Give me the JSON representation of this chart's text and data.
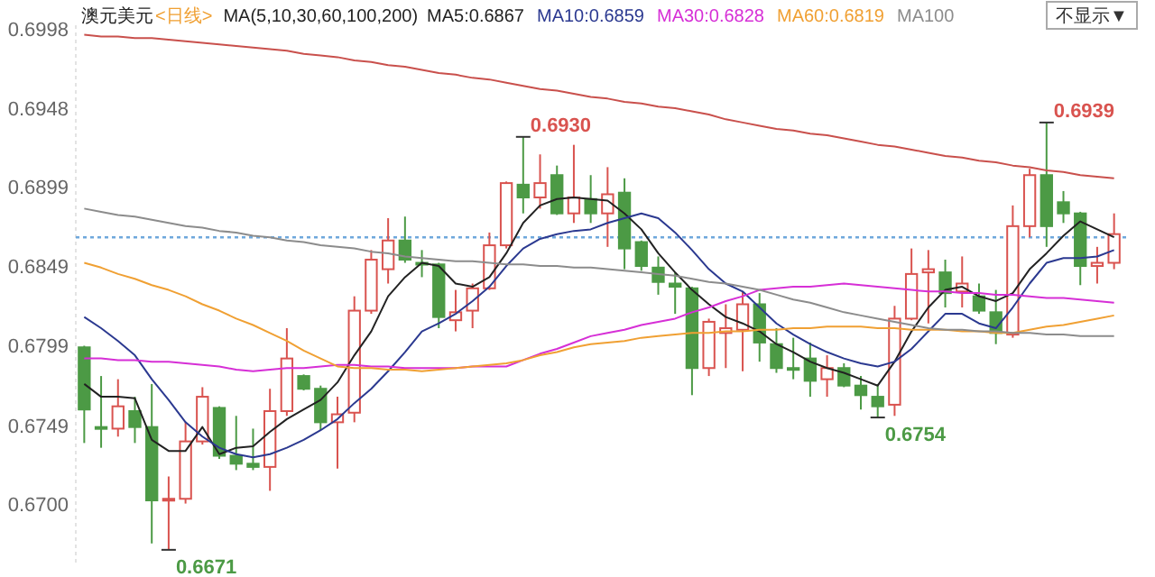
{
  "chart_data": {
    "type": "candlestick",
    "title": "澳元美元",
    "subtitle": "<日线>",
    "categories": [
      null,
      null,
      null,
      null,
      null,
      null,
      null,
      null,
      null,
      null,
      null,
      null,
      null,
      null,
      null,
      null,
      null,
      null,
      null,
      null,
      null,
      null,
      null,
      null,
      null,
      null,
      null,
      null,
      null,
      null,
      null,
      null,
      null,
      null,
      null,
      null,
      null,
      null,
      null,
      null,
      null,
      null,
      null,
      null,
      null,
      null,
      null,
      null,
      null,
      null,
      null,
      null,
      null,
      null,
      null,
      null,
      null,
      null,
      null,
      null,
      null,
      null
    ],
    "ohlc": [
      [
        0.6798,
        0.6799,
        0.6738,
        0.6759
      ],
      [
        0.6748,
        0.678,
        0.6735,
        0.6747
      ],
      [
        0.6747,
        0.6778,
        0.6742,
        0.6761
      ],
      [
        0.6758,
        0.6767,
        0.6738,
        0.6748
      ],
      [
        0.6748,
        0.6775,
        0.6675,
        0.6702
      ],
      [
        0.6702,
        0.6717,
        0.6671,
        0.6703
      ],
      [
        0.6703,
        0.6751,
        0.67,
        0.6739
      ],
      [
        0.6739,
        0.6773,
        0.6737,
        0.6767
      ],
      [
        0.676,
        0.6761,
        0.6728,
        0.673
      ],
      [
        0.673,
        0.6755,
        0.6721,
        0.6725
      ],
      [
        0.6725,
        0.6747,
        0.6721,
        0.6723
      ],
      [
        0.6723,
        0.6772,
        0.6708,
        0.6758
      ],
      [
        0.6758,
        0.681,
        0.6755,
        0.6791
      ],
      [
        0.678,
        0.6781,
        0.6771,
        0.6772
      ],
      [
        0.6772,
        0.6774,
        0.6746,
        0.6751
      ],
      [
        0.6751,
        0.6767,
        0.6722,
        0.6756
      ],
      [
        0.6757,
        0.683,
        0.6751,
        0.6821
      ],
      [
        0.6821,
        0.6859,
        0.6819,
        0.6853
      ],
      [
        0.6847,
        0.6879,
        0.6838,
        0.6865
      ],
      [
        0.6865,
        0.688,
        0.6851,
        0.6853
      ],
      [
        0.6851,
        0.6859,
        0.6842,
        0.685
      ],
      [
        0.685,
        0.6851,
        0.681,
        0.6817
      ],
      [
        0.6815,
        0.6834,
        0.6808,
        0.682
      ],
      [
        0.6821,
        0.6838,
        0.681,
        0.6835
      ],
      [
        0.6835,
        0.687,
        0.6834,
        0.6862
      ],
      [
        0.6862,
        0.6902,
        0.686,
        0.6901
      ],
      [
        0.69,
        0.693,
        0.6882,
        0.6892
      ],
      [
        0.6892,
        0.6919,
        0.6885,
        0.6901
      ],
      [
        0.6906,
        0.6912,
        0.6881,
        0.6882
      ],
      [
        0.6882,
        0.6925,
        0.6876,
        0.6892
      ],
      [
        0.6891,
        0.6906,
        0.6876,
        0.6882
      ],
      [
        0.6882,
        0.6911,
        0.6861,
        0.6894
      ],
      [
        0.6895,
        0.6904,
        0.6847,
        0.686
      ],
      [
        0.6864,
        0.6865,
        0.6846,
        0.6849
      ],
      [
        0.6848,
        0.6855,
        0.6831,
        0.6839
      ],
      [
        0.6838,
        0.6845,
        0.6819,
        0.6836
      ],
      [
        0.6835,
        0.6836,
        0.6768,
        0.6785
      ],
      [
        0.6785,
        0.6816,
        0.678,
        0.6814
      ],
      [
        0.6807,
        0.6825,
        0.6785,
        0.681
      ],
      [
        0.6809,
        0.6833,
        0.6783,
        0.6825
      ],
      [
        0.6825,
        0.6832,
        0.6789,
        0.6801
      ],
      [
        0.68,
        0.681,
        0.6782,
        0.6785
      ],
      [
        0.6785,
        0.6804,
        0.6778,
        0.6784
      ],
      [
        0.6791,
        0.6801,
        0.6767,
        0.6777
      ],
      [
        0.6778,
        0.6793,
        0.6767,
        0.6785
      ],
      [
        0.6785,
        0.6788,
        0.6773,
        0.6774
      ],
      [
        0.6774,
        0.678,
        0.6759,
        0.6768
      ],
      [
        0.6767,
        0.6775,
        0.6754,
        0.6761
      ],
      [
        0.6762,
        0.6824,
        0.6755,
        0.6816
      ],
      [
        0.6816,
        0.686,
        0.6815,
        0.6844
      ],
      [
        0.6845,
        0.6859,
        0.6813,
        0.6847
      ],
      [
        0.6845,
        0.6853,
        0.6823,
        0.6832
      ],
      [
        0.6833,
        0.6855,
        0.6823,
        0.6838
      ],
      [
        0.683,
        0.6838,
        0.6819,
        0.6821
      ],
      [
        0.682,
        0.6834,
        0.68,
        0.6807
      ],
      [
        0.6806,
        0.6887,
        0.6804,
        0.6874
      ],
      [
        0.6874,
        0.691,
        0.6867,
        0.6906
      ],
      [
        0.6906,
        0.6939,
        0.6861,
        0.6874
      ],
      [
        0.6889,
        0.6896,
        0.6876,
        0.6882
      ],
      [
        0.6882,
        0.6883,
        0.6837,
        0.6849
      ],
      [
        0.6849,
        0.6861,
        0.6838,
        0.6851
      ],
      [
        0.6851,
        0.6882,
        0.6847,
        0.6869
      ]
    ],
    "series": [
      {
        "name": "MA5:0.6867",
        "type": "line",
        "color": "#222222",
        "values": [
          0.6775,
          0.6767,
          0.6767,
          0.6766,
          0.674,
          0.6733,
          0.6733,
          0.6748,
          0.6731,
          0.6735,
          0.6736,
          0.6745,
          0.6753,
          0.6759,
          0.6765,
          0.6776,
          0.6793,
          0.6808,
          0.683,
          0.6842,
          0.6851,
          0.6849,
          0.6838,
          0.6836,
          0.6842,
          0.6857,
          0.6876,
          0.6887,
          0.6891,
          0.6892,
          0.6891,
          0.689,
          0.6882,
          0.6872,
          0.6857,
          0.6845,
          0.6834,
          0.6825,
          0.6817,
          0.6813,
          0.6808,
          0.68,
          0.6795,
          0.6789,
          0.6785,
          0.6782,
          0.6778,
          0.6774,
          0.6789,
          0.6808,
          0.6823,
          0.6834,
          0.6836,
          0.683,
          0.6827,
          0.6832,
          0.6847,
          0.6857,
          0.6868,
          0.6877,
          0.6872,
          0.6867
        ]
      },
      {
        "name": "MA10:0.6859",
        "type": "line",
        "color": "#2b3990",
        "values": [
          0.6817,
          0.681,
          0.6802,
          0.6793,
          0.6778,
          0.6765,
          0.6751,
          0.6742,
          0.6735,
          0.6731,
          0.6729,
          0.6731,
          0.6735,
          0.674,
          0.6746,
          0.6753,
          0.6763,
          0.6772,
          0.6783,
          0.6795,
          0.6808,
          0.6813,
          0.6819,
          0.6827,
          0.6836,
          0.6849,
          0.686,
          0.6866,
          0.6869,
          0.6871,
          0.6872,
          0.6876,
          0.6879,
          0.6882,
          0.6879,
          0.687,
          0.6859,
          0.6847,
          0.6838,
          0.6833,
          0.6823,
          0.6813,
          0.6806,
          0.68,
          0.6795,
          0.6791,
          0.6788,
          0.6786,
          0.6789,
          0.6797,
          0.6808,
          0.6819,
          0.6819,
          0.6813,
          0.681,
          0.6823,
          0.6838,
          0.6851,
          0.6854,
          0.6854,
          0.6855,
          0.6859
        ]
      },
      {
        "name": "MA30:0.6828",
        "type": "line",
        "color": "#d62fd6",
        "values": [
          0.6791,
          0.6791,
          0.679,
          0.679,
          0.6789,
          0.6789,
          0.6788,
          0.6787,
          0.6786,
          0.6784,
          0.6783,
          0.6784,
          0.6785,
          0.6785,
          0.6786,
          0.6787,
          0.6787,
          0.6786,
          0.6786,
          0.6785,
          0.6785,
          0.6785,
          0.6785,
          0.6786,
          0.6786,
          0.6786,
          0.679,
          0.6794,
          0.6797,
          0.6801,
          0.6805,
          0.6807,
          0.6809,
          0.6812,
          0.6814,
          0.6816,
          0.682,
          0.6823,
          0.6827,
          0.683,
          0.6834,
          0.6835,
          0.6836,
          0.6836,
          0.6837,
          0.6838,
          0.6837,
          0.6836,
          0.6835,
          0.6834,
          0.6833,
          0.6833,
          0.6832,
          0.6832,
          0.6831,
          0.6831,
          0.683,
          0.6829,
          0.6829,
          0.6828,
          0.6827,
          0.6826
        ]
      },
      {
        "name": "MA60:0.6819",
        "type": "line",
        "color": "#f0a033",
        "values": [
          0.6851,
          0.6848,
          0.6844,
          0.6841,
          0.6837,
          0.6834,
          0.683,
          0.6825,
          0.6821,
          0.6816,
          0.6812,
          0.6807,
          0.6802,
          0.6796,
          0.6791,
          0.6786,
          0.6785,
          0.6785,
          0.6784,
          0.6784,
          0.6783,
          0.6784,
          0.6785,
          0.6786,
          0.6787,
          0.6788,
          0.679,
          0.6793,
          0.6795,
          0.6798,
          0.68,
          0.6801,
          0.6802,
          0.6804,
          0.6805,
          0.6806,
          0.6807,
          0.6807,
          0.6808,
          0.6808,
          0.6809,
          0.6809,
          0.681,
          0.681,
          0.6811,
          0.6811,
          0.6811,
          0.681,
          0.681,
          0.6809,
          0.6809,
          0.6809,
          0.6808,
          0.6808,
          0.6807,
          0.6807,
          0.6809,
          0.6811,
          0.6812,
          0.6814,
          0.6816,
          0.6818
        ]
      },
      {
        "name": "MA100",
        "type": "line",
        "color": "#8c8c8c",
        "values": [
          0.6885,
          0.6883,
          0.6881,
          0.688,
          0.6878,
          0.6876,
          0.6874,
          0.6873,
          0.6871,
          0.687,
          0.6868,
          0.6867,
          0.6865,
          0.6864,
          0.6862,
          0.6861,
          0.686,
          0.6858,
          0.6857,
          0.6855,
          0.6854,
          0.6853,
          0.6852,
          0.6852,
          0.6851,
          0.685,
          0.685,
          0.6849,
          0.6849,
          0.6848,
          0.6848,
          0.6847,
          0.6846,
          0.6845,
          0.6844,
          0.6843,
          0.6841,
          0.6839,
          0.6838,
          0.6836,
          0.6834,
          0.6831,
          0.6828,
          0.6826,
          0.6823,
          0.682,
          0.6818,
          0.6816,
          0.6814,
          0.6812,
          0.681,
          0.6809,
          0.6809,
          0.6808,
          0.6808,
          0.6807,
          0.6807,
          0.6806,
          0.6806,
          0.6805,
          0.6805,
          0.6805
        ]
      },
      {
        "type": "line",
        "color": "#c9504c",
        "values": [
          0.6994,
          0.6993,
          0.6993,
          0.6992,
          0.6992,
          0.6991,
          0.699,
          0.6989,
          0.6988,
          0.6987,
          0.6986,
          0.6985,
          0.6984,
          0.6982,
          0.6981,
          0.698,
          0.6978,
          0.6977,
          0.6975,
          0.6974,
          0.6972,
          0.697,
          0.6969,
          0.6967,
          0.6966,
          0.6964,
          0.6962,
          0.696,
          0.6959,
          0.6957,
          0.6955,
          0.6954,
          0.6952,
          0.6951,
          0.6949,
          0.6948,
          0.6946,
          0.6944,
          0.6941,
          0.6939,
          0.6937,
          0.6935,
          0.6934,
          0.6932,
          0.6931,
          0.6929,
          0.6927,
          0.6925,
          0.6924,
          0.6922,
          0.692,
          0.6918,
          0.6917,
          0.6915,
          0.6914,
          0.6912,
          0.6911,
          0.6909,
          0.6908,
          0.6906,
          0.6905,
          0.6904
        ]
      }
    ],
    "colors": [
      "#4c9a45",
      "#4c9a45",
      "#d9534f",
      "#4c9a45",
      "#4c9a45",
      "#d9534f",
      "#d9534f",
      "#d9534f",
      "#4c9a45",
      "#4c9a45",
      "#4c9a45",
      "#d9534f",
      "#d9534f",
      "#4c9a45",
      "#4c9a45",
      "#d9534f",
      "#d9534f",
      "#d9534f",
      "#d9534f",
      "#4c9a45",
      "#4c9a45",
      "#4c9a45",
      "#d9534f",
      "#d9534f",
      "#d9534f",
      "#d9534f",
      "#4c9a45",
      "#d9534f",
      "#4c9a45",
      "#d9534f",
      "#4c9a45",
      "#d9534f",
      "#4c9a45",
      "#4c9a45",
      "#4c9a45",
      "#4c9a45",
      "#4c9a45",
      "#d9534f",
      "#d9534f",
      "#d9534f",
      "#4c9a45",
      "#4c9a45",
      "#4c9a45",
      "#4c9a45",
      "#d9534f",
      "#4c9a45",
      "#4c9a45",
      "#4c9a45",
      "#d9534f",
      "#d9534f",
      "#d9534f",
      "#4c9a45",
      "#d9534f",
      "#4c9a45",
      "#4c9a45",
      "#d9534f",
      "#d9534f",
      "#4c9a45",
      "#4c9a45",
      "#4c9a45",
      "#d9534f",
      "#d9534f"
    ],
    "ylim": [
      0.6663,
      0.7
    ],
    "yticks": [
      {
        "value": 0.67,
        "label": "0.6700"
      },
      0.6749,
      0.6799,
      0.6849,
      0.6899,
      0.6948,
      0.6998
    ],
    "tick_labels": "y",
    "grid": false,
    "legend": "top",
    "ref_lines": [
      {
        "axis": "y",
        "value": 0.6867,
        "color": "#6fa8dc",
        "line_style": "dotted"
      }
    ],
    "annotations": [
      "MA(5,10,30,60,100,200)",
      "不显示▼",
      "0.6930",
      "0.6939",
      "0.6671",
      "0.6754"
    ]
  }
}
